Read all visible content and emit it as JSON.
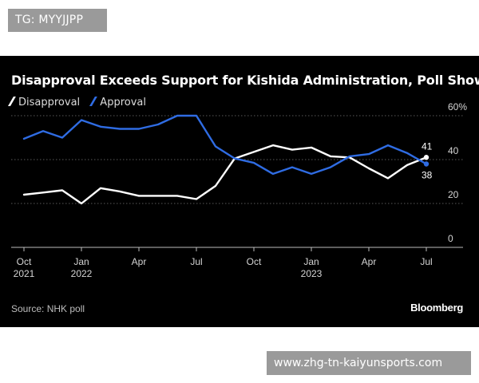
{
  "watermarks": {
    "top": "TG: MYYJJPP",
    "bottom": "www.zhg-tn-kaiyunsports.com"
  },
  "colors": {
    "background": "#000000",
    "disapproval": "#ffffff",
    "approval": "#2f6ce3",
    "grid": "#5a5a5a",
    "axis_text": "#d4d4d4"
  },
  "chart_data": {
    "type": "line",
    "title": "Disapproval Exceeds Support for Kishida Administration, Poll Shows",
    "legend": {
      "position": "top-left",
      "items": [
        {
          "key": "disapproval",
          "label": "Disapproval"
        },
        {
          "key": "approval",
          "label": "Approval"
        }
      ]
    },
    "x_axis": {
      "unit": "month index from Oct 2021",
      "range": [
        0,
        21
      ],
      "ticks": [
        {
          "x": 0,
          "label": "Oct",
          "year": "2021"
        },
        {
          "x": 3,
          "label": "Jan",
          "year": "2022"
        },
        {
          "x": 6,
          "label": "Apr",
          "year": ""
        },
        {
          "x": 9,
          "label": "Jul",
          "year": ""
        },
        {
          "x": 12,
          "label": "Oct",
          "year": ""
        },
        {
          "x": 15,
          "label": "Jan",
          "year": "2023"
        },
        {
          "x": 18,
          "label": "Apr",
          "year": ""
        },
        {
          "x": 21,
          "label": "Jul",
          "year": ""
        }
      ]
    },
    "y_axis": {
      "range": [
        0,
        60
      ],
      "ticks": [
        {
          "value": 0,
          "label": "0"
        },
        {
          "value": 20,
          "label": "20"
        },
        {
          "value": 40,
          "label": "40"
        },
        {
          "value": 60,
          "label": "60%"
        }
      ],
      "grid": true
    },
    "series": [
      {
        "key": "disapproval",
        "name": "Disapproval",
        "x": [
          0,
          1,
          2,
          3,
          4,
          5,
          6,
          7,
          8,
          9,
          10,
          11,
          12,
          13,
          14,
          15,
          16,
          17,
          18,
          19,
          20,
          21
        ],
        "values": [
          24,
          25,
          26,
          20,
          27,
          25.5,
          23.5,
          23.5,
          23.5,
          22,
          28,
          40.5,
          43.5,
          46.5,
          44.5,
          45.5,
          41.5,
          41,
          36,
          31.5,
          37.5,
          41
        ],
        "end_label": "41"
      },
      {
        "key": "approval",
        "name": "Approval",
        "x": [
          0,
          1,
          2,
          3,
          4,
          5,
          6,
          7,
          8,
          9,
          10,
          11,
          12,
          13,
          14,
          15,
          16,
          17,
          18,
          19,
          20,
          21
        ],
        "values": [
          49.5,
          53,
          50,
          58,
          55,
          54,
          54,
          56,
          60,
          60,
          46,
          40.5,
          38.5,
          33.5,
          36.5,
          33.5,
          36.5,
          41.5,
          42.5,
          46.5,
          43,
          38
        ],
        "end_label": "38"
      }
    ],
    "source": "Source: NHK poll",
    "brand": "Bloomberg"
  }
}
